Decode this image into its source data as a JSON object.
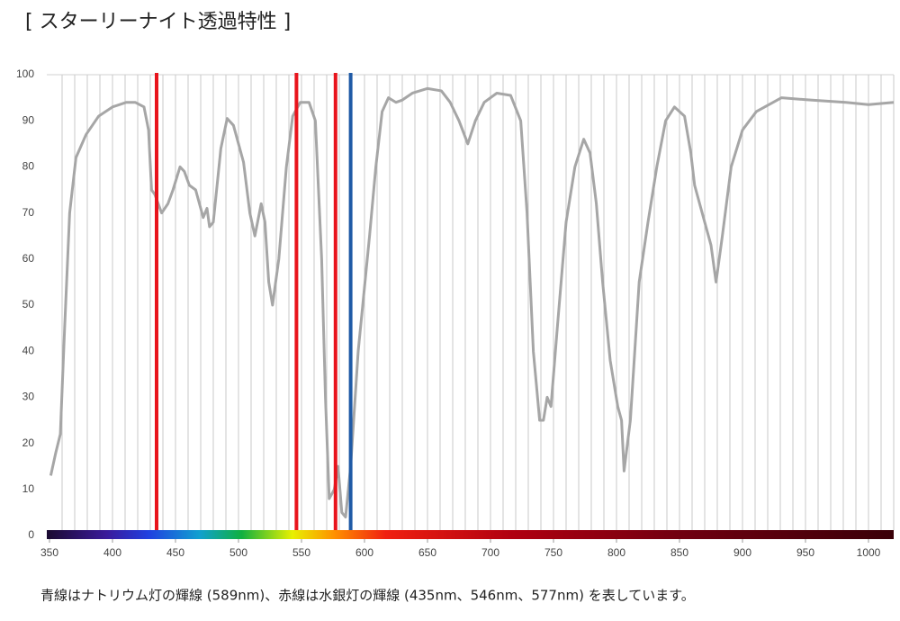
{
  "chart_data": {
    "type": "line",
    "title": "[ スターリーナイト透過特性 ]",
    "note": "青線はナトリウム灯の輝線 (589nm)、赤線は水銀灯の輝線 (435nm、546nm、577nm) を表しています。",
    "xlim": [
      350,
      1020
    ],
    "ylim": [
      0,
      100
    ],
    "xticks": [
      350,
      400,
      450,
      500,
      550,
      600,
      650,
      700,
      750,
      800,
      850,
      900,
      950,
      1000
    ],
    "yticks": [
      0,
      10,
      20,
      30,
      40,
      50,
      60,
      70,
      80,
      90,
      100
    ],
    "xgrid": [
      360,
      370,
      380,
      390,
      400,
      410,
      420,
      430,
      440,
      450,
      460,
      470,
      480,
      490,
      500,
      510,
      520,
      530,
      540,
      550,
      560,
      570,
      580,
      590,
      600,
      610,
      620,
      630,
      640,
      650,
      660,
      670,
      680,
      690,
      700,
      710,
      720,
      730,
      740,
      750,
      760,
      770,
      780,
      790,
      800,
      810,
      820,
      830,
      840,
      850,
      860,
      870,
      880,
      890,
      900,
      910,
      920,
      930,
      940,
      950,
      960,
      970,
      980,
      990,
      1000,
      1010,
      1020
    ],
    "reference_lines": [
      {
        "x": 435,
        "color": "#e8141c"
      },
      {
        "x": 546,
        "color": "#e8141c"
      },
      {
        "x": 577,
        "color": "#e8141c"
      },
      {
        "x": 589,
        "color": "#1f5aa6"
      }
    ],
    "series": [
      {
        "color": "#a6a6a6",
        "x": [
          351,
          355,
          358.6,
          362,
          366,
          371,
          379,
          389,
          400,
          411,
          418,
          425,
          428.6,
          431,
          433.6,
          439,
          444,
          448,
          453.6,
          457,
          461,
          466,
          472,
          475,
          477,
          480,
          486,
          491,
          496,
          504,
          509,
          513,
          518,
          521,
          524,
          527,
          532,
          538,
          543,
          549,
          556,
          561,
          566,
          569,
          572,
          576,
          579,
          582,
          585,
          589,
          595,
          604,
          609,
          614,
          619,
          625,
          630,
          638,
          650,
          661,
          668,
          675,
          682,
          688,
          695,
          705,
          716,
          724,
          729,
          734,
          739,
          742,
          745,
          748,
          753,
          760,
          767,
          774,
          779,
          784,
          789,
          795,
          801,
          804,
          806,
          811,
          818,
          825,
          832,
          839,
          846,
          854,
          859,
          862,
          868,
          875,
          879,
          884,
          891,
          900,
          911,
          931,
          954,
          982,
          1000,
          1020
        ],
        "values": [
          13,
          18,
          22,
          45,
          70,
          82,
          87,
          91,
          93,
          94,
          94,
          93,
          88,
          75,
          74,
          70,
          72,
          75,
          80,
          79,
          76,
          75,
          69,
          71,
          67,
          68,
          84,
          90.5,
          89,
          81,
          70,
          65,
          72,
          68,
          55,
          50,
          60,
          80,
          91,
          94,
          94,
          90,
          60,
          30,
          8,
          10,
          15,
          5,
          4,
          15,
          40,
          65,
          80,
          92,
          95,
          94,
          94.5,
          96,
          97,
          96.5,
          94,
          90,
          85,
          90,
          94,
          96,
          95.5,
          90,
          70,
          40,
          25,
          25,
          30,
          28,
          45,
          68,
          80,
          86,
          83,
          72,
          55,
          38,
          28,
          25,
          14,
          25,
          55,
          68,
          80,
          90,
          93,
          91,
          83,
          76,
          70,
          63,
          55,
          65,
          80,
          88,
          92,
          95,
          94.5,
          94,
          93.5,
          94
        ]
      }
    ]
  }
}
